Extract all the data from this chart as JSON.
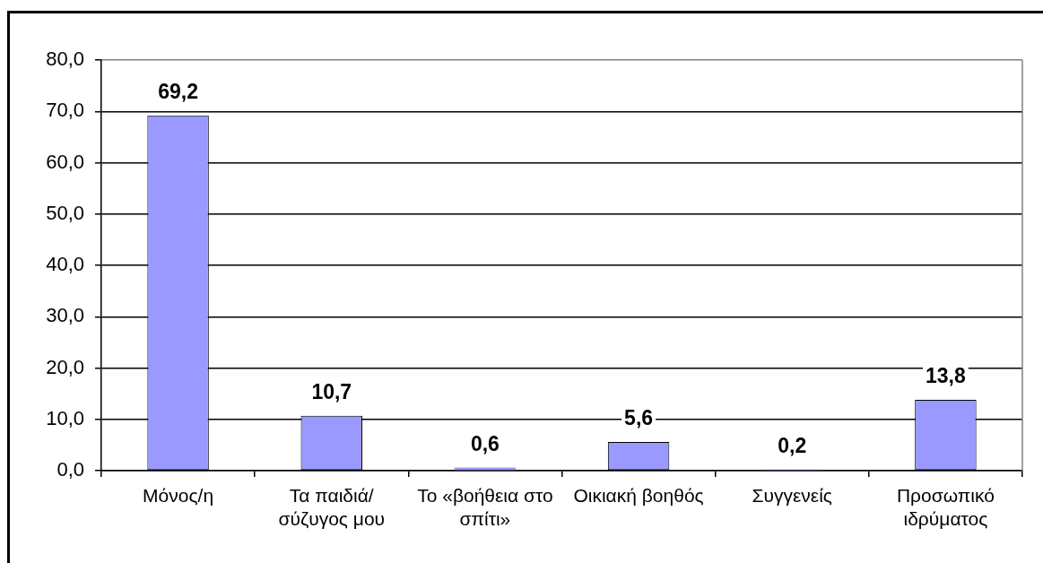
{
  "chart_data": {
    "type": "bar",
    "categories": [
      "Μόνος/η",
      "Τα παιδιά/ σύζυγος μου",
      "Το «βοήθεια στο σπίτι»",
      "Οικιακή βοηθός",
      "Συγγενείς",
      "Προσωπικό ιδρύματος"
    ],
    "values": [
      69.2,
      10.7,
      0.6,
      5.6,
      0.2,
      13.8
    ],
    "value_labels": [
      "69,2",
      "10,7",
      "0,6",
      "5,6",
      "0,2",
      "13,8"
    ],
    "color": "#9999ff",
    "ylim": [
      0,
      80
    ],
    "yticks": [
      {
        "value": 0,
        "label": "0,0"
      },
      {
        "value": 10,
        "label": "10,0"
      },
      {
        "value": 20,
        "label": "20,0"
      },
      {
        "value": 30,
        "label": "30,0"
      },
      {
        "value": 40,
        "label": "40,0"
      },
      {
        "value": 50,
        "label": "50,0"
      },
      {
        "value": 60,
        "label": "60,0"
      },
      {
        "value": 70,
        "label": "70,0"
      },
      {
        "value": 80,
        "label": "80,0"
      }
    ],
    "grid": "y"
  }
}
